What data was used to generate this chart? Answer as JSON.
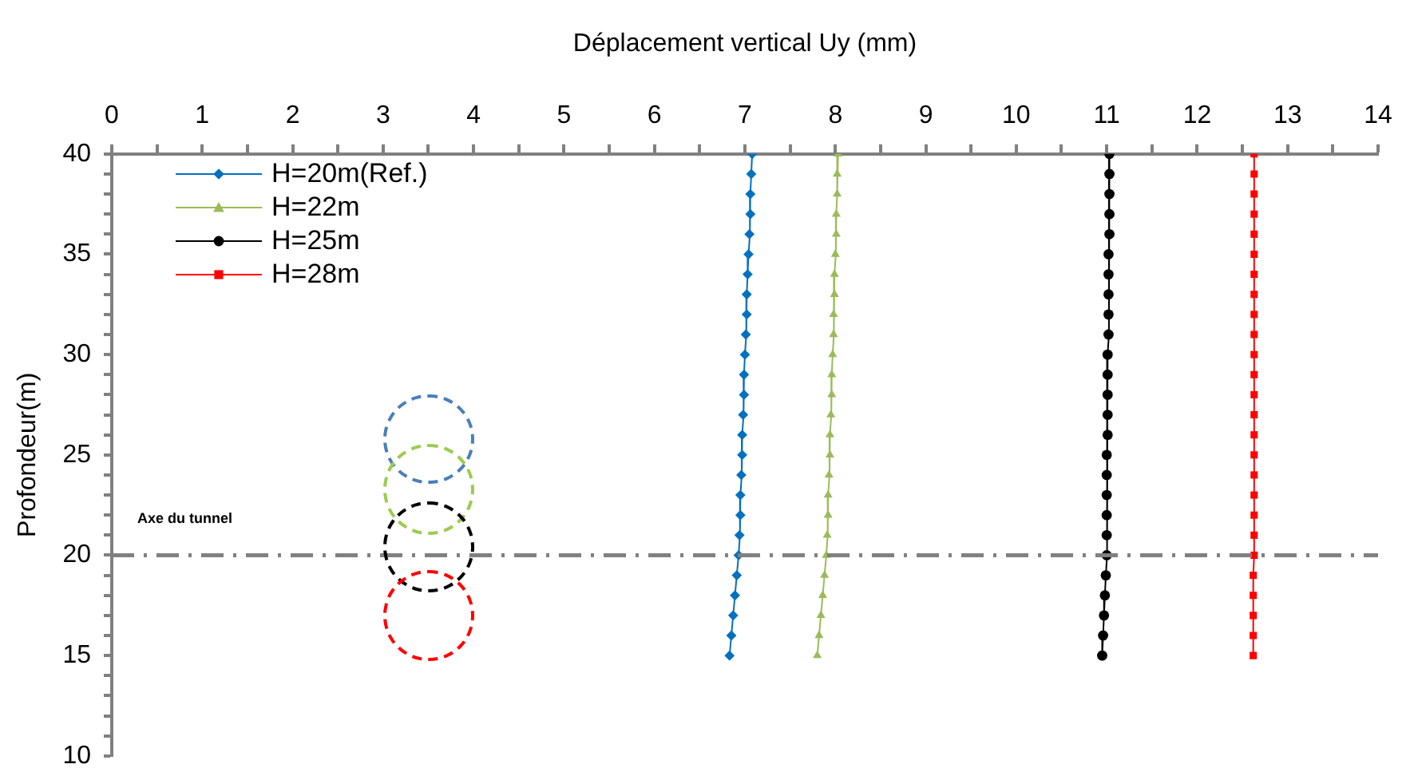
{
  "chart_data": {
    "type": "line",
    "xlabel": "Déplacement vertical Uy (mm)",
    "ylabel": "Profondeur(m)",
    "xlim": [
      0,
      14
    ],
    "xticks": [
      0,
      {
        "value": 0.5,
        "label": null
      },
      1,
      {
        "value": 1.5,
        "label": null
      },
      2,
      {
        "value": 2.5,
        "label": null
      },
      3,
      {
        "value": 3.5,
        "label": null
      },
      4,
      {
        "value": 4.5,
        "label": null
      },
      5,
      {
        "value": 5.5,
        "label": null
      },
      6,
      {
        "value": 6.5,
        "label": null
      },
      7,
      {
        "value": 7.5,
        "label": null
      },
      8,
      {
        "value": 8.5,
        "label": null
      },
      9,
      {
        "value": 9.5,
        "label": null
      },
      10,
      {
        "value": 10.5,
        "label": null
      },
      11,
      {
        "value": 11.5,
        "label": null
      },
      12,
      {
        "value": 12.5,
        "label": null
      },
      13,
      {
        "value": 13.5,
        "label": null
      },
      14
    ],
    "ylim": [
      10,
      40
    ],
    "yticks": [
      10,
      {
        "value": 11,
        "label": null
      },
      {
        "value": 12,
        "label": null
      },
      {
        "value": 13,
        "label": null
      },
      {
        "value": 14,
        "label": null
      },
      15,
      {
        "value": 16,
        "label": null
      },
      {
        "value": 17,
        "label": null
      },
      {
        "value": 18,
        "label": null
      },
      {
        "value": 19,
        "label": null
      },
      20,
      {
        "value": 21,
        "label": null
      },
      {
        "value": 22,
        "label": null
      },
      {
        "value": 23,
        "label": null
      },
      {
        "value": 24,
        "label": null
      },
      25,
      {
        "value": 26,
        "label": null
      },
      {
        "value": 27,
        "label": null
      },
      {
        "value": 28,
        "label": null
      },
      {
        "value": 29,
        "label": null
      },
      30,
      {
        "value": 31,
        "label": null
      },
      {
        "value": 32,
        "label": null
      },
      {
        "value": 33,
        "label": null
      },
      {
        "value": 34,
        "label": null
      },
      35,
      {
        "value": 36,
        "label": null
      },
      {
        "value": 37,
        "label": null
      },
      {
        "value": 38,
        "label": null
      },
      {
        "value": 39,
        "label": null
      },
      40
    ],
    "grid": false,
    "legend": "top left",
    "line_style": "solid",
    "ref_lines": [
      {
        "axis": "y",
        "value": 20,
        "label": "Axe du tunnel",
        "color": "#808080",
        "line_style": "dashdot"
      }
    ],
    "series": [
      {
        "name": "H=20m(Ref.)",
        "color": "#0070c0",
        "marker": "diamond",
        "x": [
          7.08,
          7.07,
          7.06,
          7.06,
          7.05,
          7.04,
          7.03,
          7.02,
          7.02,
          7.01,
          7.0,
          6.99,
          6.99,
          6.98,
          6.97,
          6.97,
          6.96,
          6.95,
          6.95,
          6.94,
          6.93,
          6.91,
          6.89,
          6.87,
          6.85,
          6.83
        ],
        "values": [
          40,
          39,
          38,
          37,
          36,
          35,
          34,
          33,
          32,
          31,
          30,
          29,
          28,
          27,
          26,
          25,
          24,
          23,
          22,
          21,
          20,
          19,
          18,
          17,
          16,
          15
        ]
      },
      {
        "name": "H=22m",
        "color": "#9bbb59",
        "marker": "triangle",
        "x": [
          8.03,
          8.02,
          8.02,
          8.01,
          8.01,
          8.0,
          7.99,
          7.99,
          7.98,
          7.98,
          7.97,
          7.96,
          7.96,
          7.95,
          7.94,
          7.94,
          7.93,
          7.92,
          7.92,
          7.91,
          7.9,
          7.88,
          7.86,
          7.84,
          7.82,
          7.8
        ],
        "values": [
          40,
          39,
          38,
          37,
          36,
          35,
          34,
          33,
          32,
          31,
          30,
          29,
          28,
          27,
          26,
          25,
          24,
          23,
          22,
          21,
          20,
          19,
          18,
          17,
          16,
          15
        ]
      },
      {
        "name": "H=25m",
        "color": "#000000",
        "marker": "circle",
        "x": [
          11.03,
          11.03,
          11.03,
          11.03,
          11.03,
          11.02,
          11.02,
          11.02,
          11.02,
          11.02,
          11.01,
          11.01,
          11.01,
          11.01,
          11.01,
          11.0,
          11.0,
          11.0,
          11.0,
          11.0,
          11.0,
          10.99,
          10.98,
          10.97,
          10.96,
          10.95
        ],
        "values": [
          40,
          39,
          38,
          37,
          36,
          35,
          34,
          33,
          32,
          31,
          30,
          29,
          28,
          27,
          26,
          25,
          24,
          23,
          22,
          21,
          20,
          19,
          18,
          17,
          16,
          15
        ]
      },
      {
        "name": "H=28m",
        "color": "#ff0000",
        "marker": "square",
        "x": [
          12.63,
          12.63,
          12.63,
          12.63,
          12.63,
          12.63,
          12.63,
          12.63,
          12.63,
          12.63,
          12.63,
          12.63,
          12.63,
          12.63,
          12.63,
          12.63,
          12.63,
          12.63,
          12.63,
          12.63,
          12.63,
          12.62,
          12.62,
          12.62,
          12.62,
          12.62
        ],
        "values": [
          40,
          39,
          38,
          37,
          36,
          35,
          34,
          33,
          32,
          31,
          30,
          29,
          28,
          27,
          26,
          25,
          24,
          23,
          22,
          21,
          20,
          19,
          18,
          17,
          16,
          15
        ]
      }
    ]
  }
}
